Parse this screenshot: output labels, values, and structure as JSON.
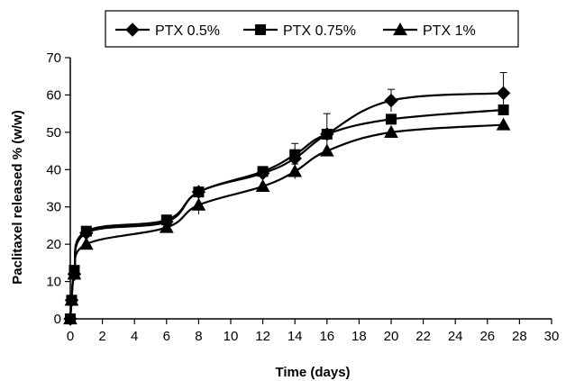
{
  "chart_data": {
    "type": "line",
    "title": "",
    "xlabel": "Time (days)",
    "ylabel": "Paclitaxel released % (w/w)",
    "xlim": [
      0,
      30
    ],
    "ylim": [
      0,
      70
    ],
    "xticks": [
      0,
      2,
      4,
      6,
      8,
      10,
      12,
      14,
      16,
      18,
      20,
      22,
      24,
      26,
      28,
      30
    ],
    "yticks": [
      0,
      10,
      20,
      30,
      40,
      50,
      60,
      70
    ],
    "grid": false,
    "legend_position": "top-center",
    "series": [
      {
        "name": "PTX 0.5%",
        "marker": "diamond",
        "color": "#000000",
        "points": [
          {
            "x": 0,
            "y": 0
          },
          {
            "x": 0.083,
            "y": 5
          },
          {
            "x": 0.25,
            "y": 12
          },
          {
            "x": 1,
            "y": 23
          },
          {
            "x": 6,
            "y": 26
          },
          {
            "x": 8,
            "y": 34
          },
          {
            "x": 12,
            "y": 39
          },
          {
            "x": 14,
            "y": 43
          },
          {
            "x": 16,
            "y": 49.5
          },
          {
            "x": 20,
            "y": 58.5
          },
          {
            "x": 27,
            "y": 60.5
          }
        ],
        "errors": [
          0,
          0,
          0,
          0,
          0,
          0,
          0,
          0,
          5.5,
          3,
          5.5
        ]
      },
      {
        "name": "PTX 0.75%",
        "marker": "square",
        "color": "#000000",
        "points": [
          {
            "x": 0,
            "y": 0
          },
          {
            "x": 0.083,
            "y": 5
          },
          {
            "x": 0.25,
            "y": 13
          },
          {
            "x": 1,
            "y": 23.5
          },
          {
            "x": 6,
            "y": 26.5
          },
          {
            "x": 8,
            "y": 34
          },
          {
            "x": 12,
            "y": 39.5
          },
          {
            "x": 14,
            "y": 44
          },
          {
            "x": 16,
            "y": 49.5
          },
          {
            "x": 20,
            "y": 53.5
          },
          {
            "x": 27,
            "y": 56
          }
        ],
        "errors": [
          0,
          0,
          0,
          0,
          0,
          0,
          0,
          3,
          0,
          0,
          0
        ]
      },
      {
        "name": "PTX 1%",
        "marker": "triangle",
        "color": "#000000",
        "points": [
          {
            "x": 0,
            "y": 0
          },
          {
            "x": 0.083,
            "y": 5
          },
          {
            "x": 0.25,
            "y": 12
          },
          {
            "x": 1,
            "y": 20
          },
          {
            "x": 6,
            "y": 24.5
          },
          {
            "x": 8,
            "y": 30.5
          },
          {
            "x": 12,
            "y": 35.5
          },
          {
            "x": 14,
            "y": 39.5
          },
          {
            "x": 16,
            "y": 45
          },
          {
            "x": 20,
            "y": 50
          },
          {
            "x": 27,
            "y": 52
          }
        ],
        "errors": [
          0,
          0,
          0,
          0,
          0,
          2.5,
          0,
          2,
          0,
          0,
          0
        ]
      }
    ]
  }
}
